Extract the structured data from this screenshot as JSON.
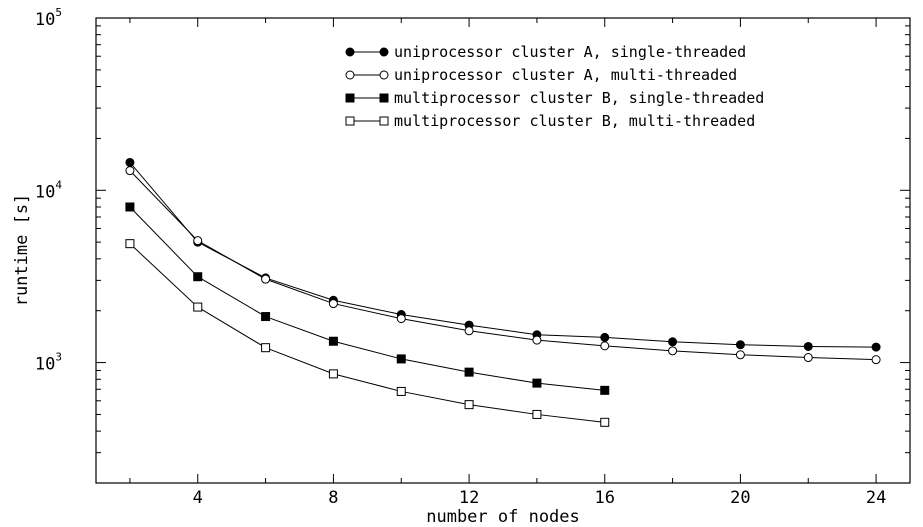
{
  "chart_data": {
    "type": "line",
    "title": "",
    "xlabel": "number of nodes",
    "ylabel": "runtime [s]",
    "xlim": [
      1,
      25
    ],
    "ylim": [
      200,
      100000
    ],
    "yscale": "log",
    "grid": false,
    "legend_position": "top-right",
    "x_ticks": [
      4,
      8,
      12,
      16,
      20,
      24
    ],
    "x_tick_labels": [
      "4",
      "8",
      "12",
      "16",
      "20",
      "24"
    ],
    "y_ticks": [
      1000,
      10000,
      100000
    ],
    "y_tick_labels": [
      {
        "base": "10",
        "exp": "3"
      },
      {
        "base": "10",
        "exp": "4"
      },
      {
        "base": "10",
        "exp": "5"
      }
    ],
    "series": [
      {
        "name": "uniprocessor cluster A, single-threaded",
        "marker": "filled-circle",
        "x": [
          2,
          4,
          6,
          8,
          10,
          12,
          14,
          16,
          18,
          20,
          22,
          24
        ],
        "y": [
          14500,
          5000,
          3100,
          2300,
          1900,
          1650,
          1450,
          1400,
          1320,
          1270,
          1240,
          1230
        ]
      },
      {
        "name": "uniprocessor cluster A, multi-threaded",
        "marker": "open-circle",
        "x": [
          2,
          4,
          6,
          8,
          10,
          12,
          14,
          16,
          18,
          20,
          22,
          24
        ],
        "y": [
          13000,
          5100,
          3050,
          2200,
          1800,
          1530,
          1350,
          1250,
          1170,
          1110,
          1070,
          1040
        ]
      },
      {
        "name": "multiprocessor cluster B, single-threaded",
        "marker": "filled-square",
        "x": [
          2,
          4,
          6,
          8,
          10,
          12,
          14,
          16
        ],
        "y": [
          8000,
          3150,
          1850,
          1330,
          1050,
          880,
          760,
          690
        ]
      },
      {
        "name": "multiprocessor cluster B, multi-threaded",
        "marker": "open-square",
        "x": [
          2,
          4,
          6,
          8,
          10,
          12,
          14,
          16
        ],
        "y": [
          4900,
          2100,
          1220,
          860,
          680,
          570,
          500,
          450
        ]
      }
    ]
  },
  "colors": {
    "line": "#000000",
    "background": "#ffffff"
  }
}
